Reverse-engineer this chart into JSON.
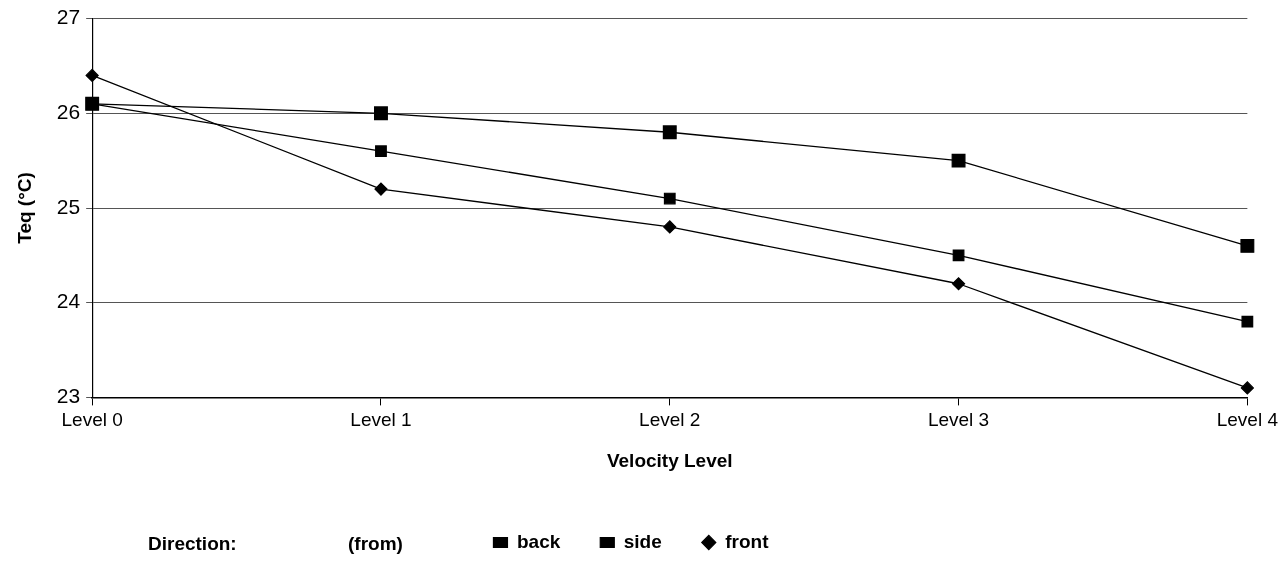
{
  "chart_data": {
    "type": "line",
    "xlabel": "Velocity Level",
    "ylabel": "Teq (°C)",
    "legend_title": "Direction:",
    "annotations": [
      "(from)"
    ],
    "categories": [
      "Level 0",
      "Level 1",
      "Level 2",
      "Level 3",
      "Level 4"
    ],
    "series": [
      {
        "name": "back",
        "color": "#000000",
        "marker": "square",
        "values": [
          26.1,
          26.0,
          25.8,
          25.5,
          24.6
        ]
      },
      {
        "name": "side",
        "color": "#000000",
        "marker": "square",
        "values": [
          26.1,
          25.6,
          25.1,
          24.5,
          23.8
        ]
      },
      {
        "name": "front",
        "color": "#000000",
        "marker": "diamond",
        "values": [
          26.4,
          25.2,
          24.8,
          24.2,
          23.1
        ]
      }
    ],
    "ylim": [
      23,
      27
    ],
    "yticks": [
      23,
      24,
      25,
      26,
      27
    ],
    "grid": "y",
    "legend": "bottom",
    "line_style": "solid"
  }
}
